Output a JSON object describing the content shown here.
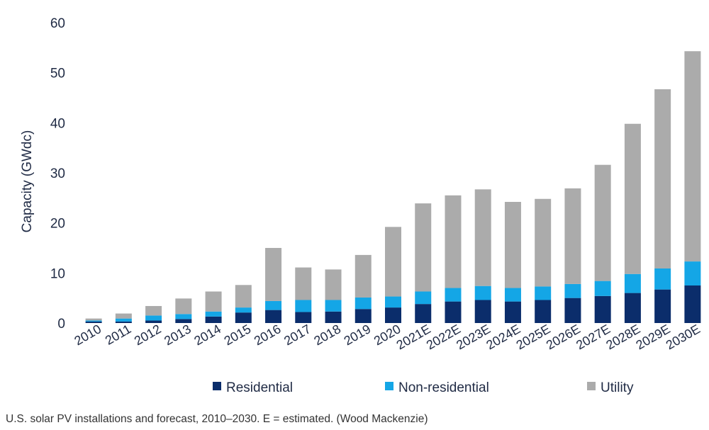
{
  "caption": "U.S. solar PV installations and forecast, 2010–2030. E = estimated. (Wood Mackenzie)",
  "chart_data": {
    "type": "bar",
    "stacked": true,
    "categories": [
      "2010",
      "2011",
      "2012",
      "2013",
      "2014",
      "2015",
      "2016",
      "2017",
      "2018",
      "2019",
      "2020",
      "2021E",
      "2022E",
      "2023E",
      "2024E",
      "2025E",
      "2026E",
      "2027E",
      "2028E",
      "2029E",
      "2030E"
    ],
    "series": [
      {
        "name": "Residential",
        "color": "#0b2d6b",
        "values": [
          0.3,
          0.3,
          0.5,
          0.8,
          1.3,
          2.1,
          2.6,
          2.2,
          2.3,
          2.8,
          3.1,
          3.8,
          4.3,
          4.6,
          4.3,
          4.6,
          5.0,
          5.4,
          6.0,
          6.7,
          7.5
        ]
      },
      {
        "name": "Non-residential",
        "color": "#14a6e6",
        "values": [
          0.2,
          0.6,
          1.0,
          1.0,
          1.0,
          1.0,
          1.8,
          2.4,
          2.3,
          2.3,
          2.2,
          2.5,
          2.7,
          2.8,
          2.7,
          2.7,
          2.8,
          3.0,
          3.8,
          4.2,
          4.8
        ]
      },
      {
        "name": "Utility",
        "color": "#ababab",
        "values": [
          0.4,
          1.0,
          1.9,
          3.1,
          4.0,
          4.5,
          10.6,
          6.5,
          6.1,
          8.5,
          13.9,
          17.6,
          18.5,
          19.3,
          17.2,
          17.5,
          19.1,
          23.2,
          30.0,
          35.8,
          42.0
        ]
      }
    ],
    "ylabel": "Capacity (GWdc)",
    "xlabel": "",
    "ylim": [
      0,
      60
    ],
    "yticks": [
      0,
      10,
      20,
      30,
      40,
      50,
      60
    ],
    "grid": false,
    "legend_position": "bottom"
  }
}
